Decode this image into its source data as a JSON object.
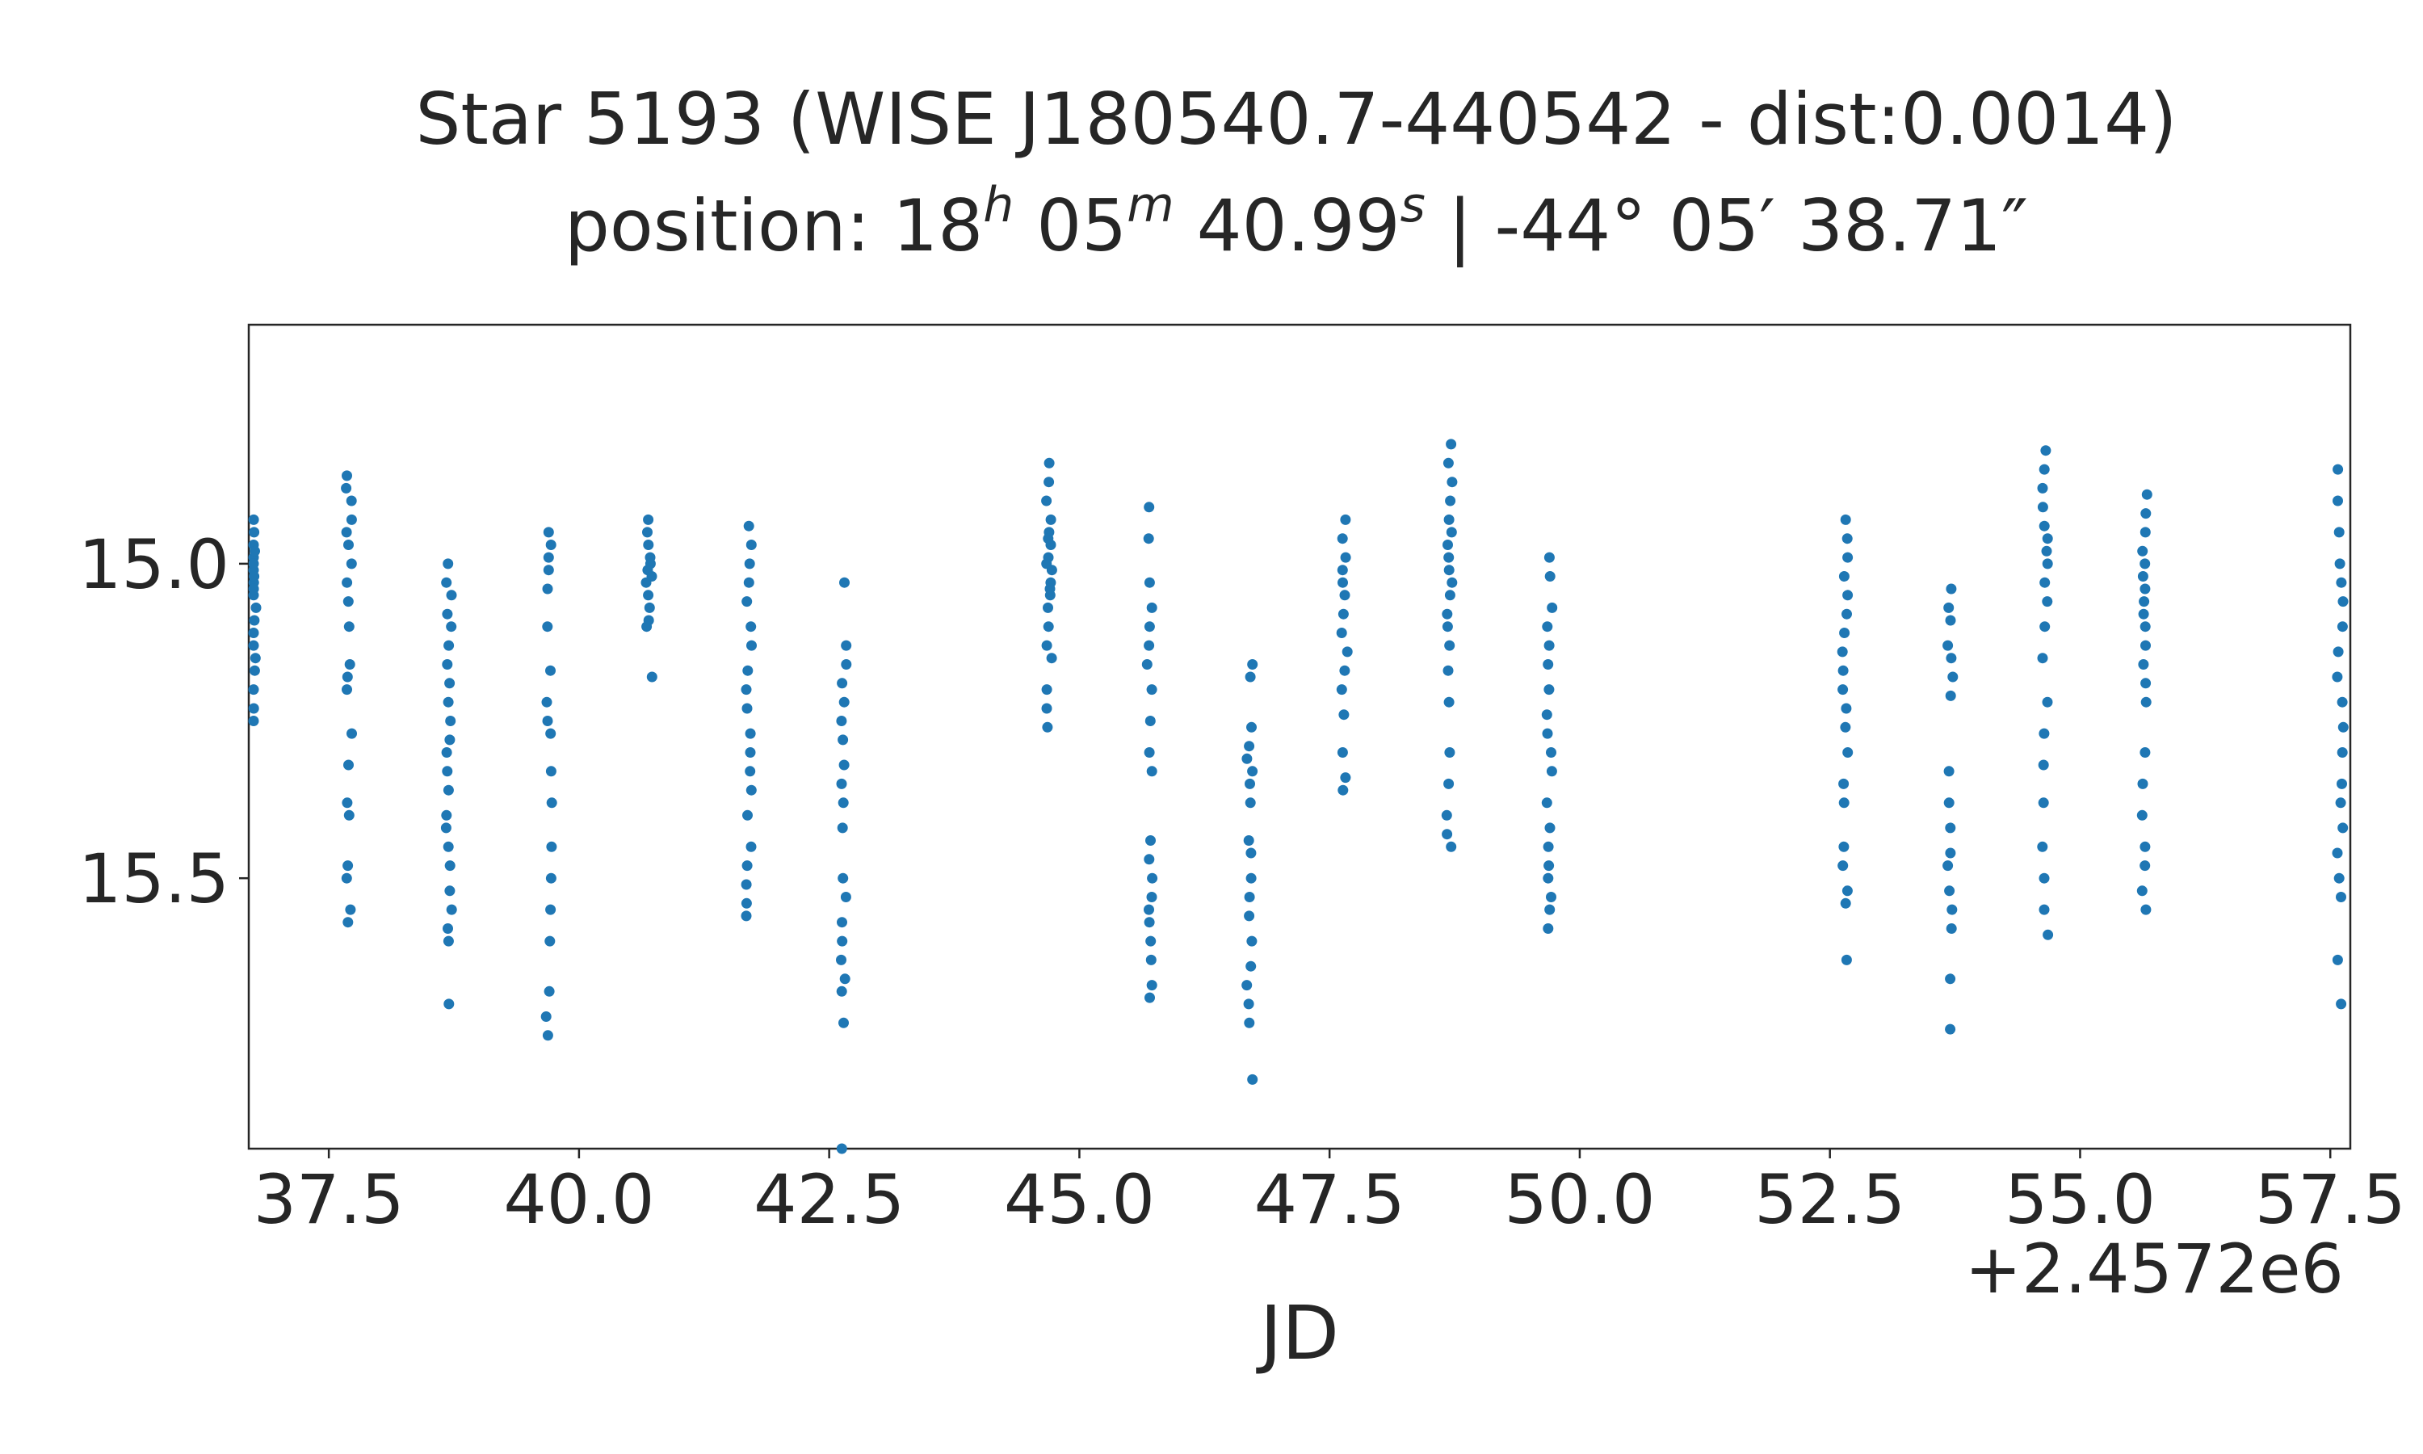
{
  "chart_data": {
    "type": "scatter",
    "title": "Star 5193 (WISE J180540.7-440542 - dist:0.0014)",
    "subtitle": {
      "prefix": "position: ",
      "ra_h": "18",
      "ra_h_unit": "h",
      "ra_m": "05",
      "ra_m_unit": "m",
      "ra_s": "40.99",
      "ra_s_unit": "s",
      "separator": "|",
      "dec_d": "-44°",
      "dec_m": "05′",
      "dec_s": "38.71″"
    },
    "xlabel": "JD",
    "ylabel": "",
    "x_offset_label": "+2.4572e6",
    "xlim": [
      36.7,
      57.7
    ],
    "ylim": [
      15.93,
      14.62
    ],
    "y_inverted": true,
    "grid": false,
    "marker_color": "#1f77b4",
    "x_ticks": [
      37.5,
      40.0,
      42.5,
      45.0,
      47.5,
      50.0,
      52.5,
      55.0,
      57.5
    ],
    "x_tick_labels": [
      "37.5",
      "40.0",
      "42.5",
      "45.0",
      "47.5",
      "50.0",
      "52.5",
      "55.0",
      "57.5"
    ],
    "y_ticks": [
      15.0,
      15.5
    ],
    "y_tick_labels": [
      "15.0",
      "15.5"
    ],
    "nights": [
      {
        "jd": 36.75,
        "mags": [
          14.93,
          14.95,
          14.97,
          14.99,
          15.01,
          15.03,
          15.05,
          15.07,
          15.09,
          15.11,
          15.13,
          15.15,
          15.17,
          15.2,
          15.23,
          15.25,
          14.98,
          15.0,
          15.02,
          15.04
        ]
      },
      {
        "jd": 37.7,
        "mags": [
          14.86,
          14.88,
          14.9,
          14.93,
          14.95,
          14.97,
          15.0,
          15.03,
          15.06,
          15.1,
          15.16,
          15.18,
          15.2,
          15.27,
          15.32,
          15.38,
          15.4,
          15.48,
          15.5,
          15.55,
          15.57
        ]
      },
      {
        "jd": 38.7,
        "mags": [
          15.0,
          15.03,
          15.05,
          15.08,
          15.1,
          15.13,
          15.16,
          15.19,
          15.22,
          15.25,
          15.28,
          15.3,
          15.33,
          15.36,
          15.4,
          15.42,
          15.45,
          15.48,
          15.52,
          15.55,
          15.58,
          15.6,
          15.7
        ]
      },
      {
        "jd": 39.7,
        "mags": [
          14.95,
          14.97,
          14.99,
          15.01,
          15.04,
          15.1,
          15.17,
          15.22,
          15.25,
          15.27,
          15.33,
          15.38,
          15.45,
          15.5,
          15.55,
          15.6,
          15.68,
          15.72,
          15.75
        ]
      },
      {
        "jd": 40.7,
        "mags": [
          14.93,
          14.95,
          14.97,
          14.99,
          15.0,
          15.01,
          15.02,
          15.03,
          15.05,
          15.07,
          15.09,
          15.1,
          15.18
        ]
      },
      {
        "jd": 41.7,
        "mags": [
          14.94,
          14.97,
          15.0,
          15.03,
          15.06,
          15.1,
          15.13,
          15.17,
          15.2,
          15.23,
          15.27,
          15.3,
          15.33,
          15.36,
          15.4,
          15.45,
          15.48,
          15.51,
          15.54,
          15.56
        ]
      },
      {
        "jd": 42.65,
        "mags": [
          15.03,
          15.13,
          15.16,
          15.19,
          15.22,
          15.25,
          15.28,
          15.32,
          15.35,
          15.38,
          15.42,
          15.5,
          15.53,
          15.57,
          15.6,
          15.63,
          15.66,
          15.68,
          15.73,
          15.93
        ]
      },
      {
        "jd": 44.7,
        "mags": [
          14.84,
          14.87,
          14.9,
          14.93,
          14.95,
          14.97,
          14.99,
          15.01,
          15.03,
          15.05,
          15.07,
          15.1,
          15.13,
          15.15,
          15.2,
          15.23,
          15.26,
          14.96,
          15.0,
          15.04
        ]
      },
      {
        "jd": 45.7,
        "mags": [
          14.91,
          14.96,
          15.03,
          15.07,
          15.1,
          15.13,
          15.16,
          15.2,
          15.25,
          15.3,
          15.33,
          15.44,
          15.47,
          15.5,
          15.53,
          15.55,
          15.57,
          15.6,
          15.63,
          15.67,
          15.69
        ]
      },
      {
        "jd": 46.7,
        "mags": [
          15.16,
          15.18,
          15.26,
          15.29,
          15.31,
          15.33,
          15.35,
          15.38,
          15.44,
          15.46,
          15.5,
          15.53,
          15.56,
          15.6,
          15.64,
          15.67,
          15.7,
          15.73,
          15.82
        ]
      },
      {
        "jd": 47.65,
        "mags": [
          14.93,
          14.96,
          14.99,
          15.01,
          15.03,
          15.05,
          15.08,
          15.11,
          15.14,
          15.17,
          15.2,
          15.24,
          15.3,
          15.34,
          15.36
        ]
      },
      {
        "jd": 48.7,
        "mags": [
          14.81,
          14.84,
          14.87,
          14.9,
          14.93,
          14.95,
          14.97,
          14.99,
          15.01,
          15.03,
          15.05,
          15.08,
          15.1,
          15.13,
          15.17,
          15.22,
          15.3,
          15.35,
          15.4,
          15.43,
          15.45
        ]
      },
      {
        "jd": 49.7,
        "mags": [
          14.99,
          15.02,
          15.07,
          15.1,
          15.13,
          15.16,
          15.2,
          15.24,
          15.27,
          15.3,
          15.33,
          15.38,
          15.42,
          15.45,
          15.48,
          15.5,
          15.53,
          15.55,
          15.58
        ]
      },
      {
        "jd": 52.65,
        "mags": [
          14.93,
          14.96,
          14.99,
          15.02,
          15.05,
          15.08,
          15.11,
          15.14,
          15.17,
          15.2,
          15.23,
          15.26,
          15.3,
          15.35,
          15.38,
          15.45,
          15.48,
          15.52,
          15.54,
          15.63
        ]
      },
      {
        "jd": 53.7,
        "mags": [
          15.04,
          15.07,
          15.09,
          15.13,
          15.15,
          15.18,
          15.21,
          15.33,
          15.38,
          15.42,
          15.46,
          15.48,
          15.52,
          15.55,
          15.58,
          15.66,
          15.74
        ]
      },
      {
        "jd": 54.65,
        "mags": [
          14.82,
          14.85,
          14.88,
          14.91,
          14.94,
          14.96,
          14.98,
          15.0,
          15.03,
          15.06,
          15.1,
          15.15,
          15.22,
          15.27,
          15.32,
          15.38,
          15.45,
          15.5,
          15.55,
          15.59
        ]
      },
      {
        "jd": 55.65,
        "mags": [
          14.89,
          14.92,
          14.95,
          14.98,
          15.0,
          15.02,
          15.04,
          15.06,
          15.08,
          15.1,
          15.13,
          15.16,
          15.19,
          15.22,
          15.3,
          15.35,
          15.4,
          15.45,
          15.48,
          15.52,
          15.55
        ]
      },
      {
        "jd": 57.6,
        "mags": [
          14.85,
          14.9,
          14.95,
          15.0,
          15.03,
          15.06,
          15.1,
          15.14,
          15.18,
          15.22,
          15.26,
          15.3,
          15.35,
          15.38,
          15.42,
          15.46,
          15.5,
          15.53,
          15.63,
          15.7
        ]
      }
    ]
  }
}
